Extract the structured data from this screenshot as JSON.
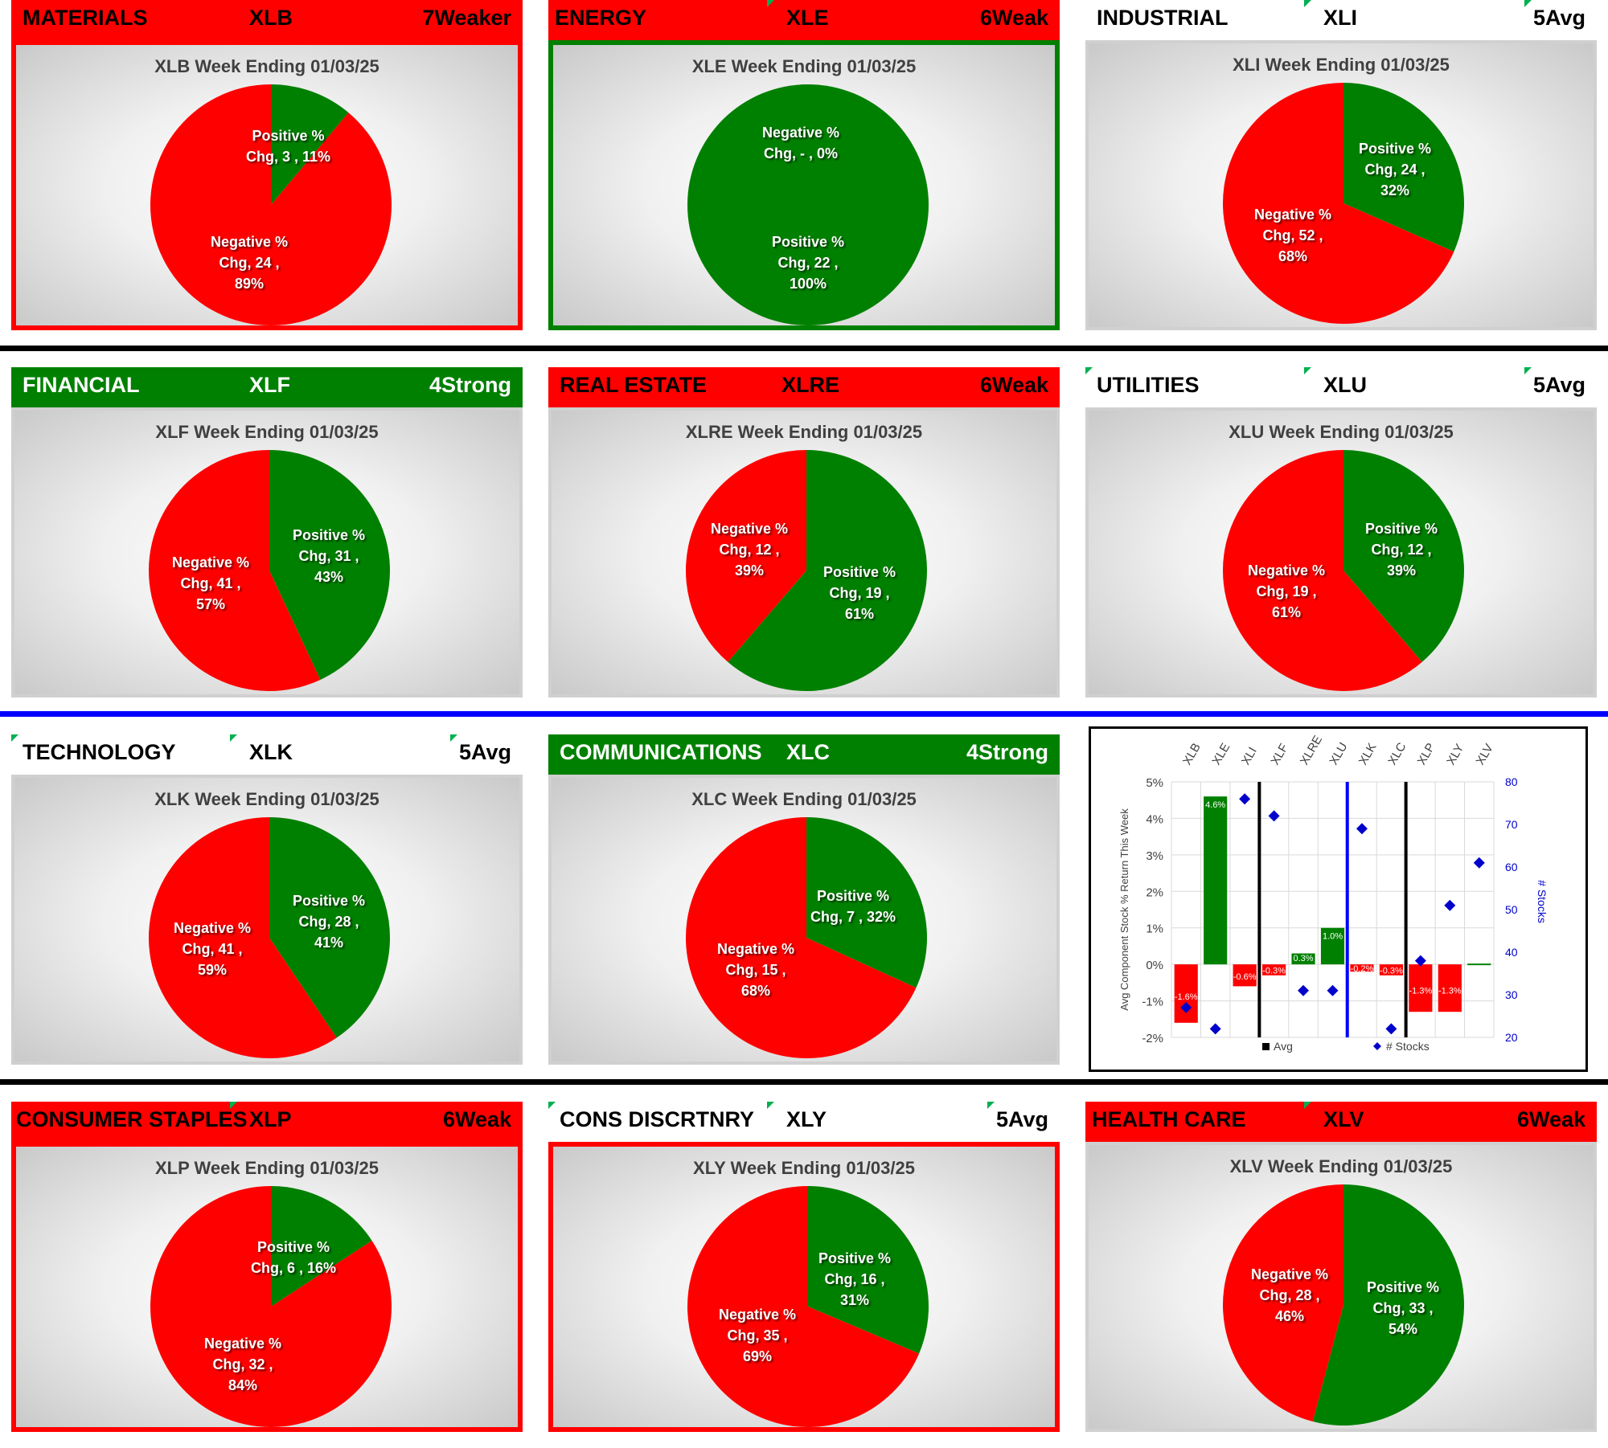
{
  "colors": {
    "positive": "#008000",
    "negative": "#ff0000",
    "avg_line": "#000000",
    "stocks_marker": "#0000cc",
    "blue_separator": "#0000ff"
  },
  "sectors": [
    {
      "id": "xlb",
      "name": "MATERIALS",
      "ticker": "XLB",
      "rating": "7Weaker",
      "title": "XLB Week Ending 01/03/25",
      "pos_label": [
        "Positive %",
        "Chg,  3 , 11%"
      ],
      "neg_label": [
        "Negative %",
        "Chg,  24 ,",
        "89%"
      ],
      "positive_count": 3,
      "negative_count": 24,
      "positive_pct": 11
    },
    {
      "id": "xle",
      "name": "ENERGY",
      "ticker": "XLE",
      "rating": "6Weak",
      "title": "XLE Week Ending 01/03/25",
      "pos_label": [
        "Positive %",
        "Chg,  22 ,",
        "100%"
      ],
      "neg_label": [
        "Negative %",
        "Chg,  -   , 0%"
      ],
      "positive_count": 22,
      "negative_count": 0,
      "positive_pct": 100
    },
    {
      "id": "xli",
      "name": "INDUSTRIAL",
      "ticker": "XLI",
      "rating": "5Avg",
      "title": "XLI Week Ending 01/03/25",
      "pos_label": [
        "Positive %",
        "Chg,  24 ,",
        "32%"
      ],
      "neg_label": [
        "Negative %",
        "Chg,  52 ,",
        "68%"
      ],
      "positive_count": 24,
      "negative_count": 52,
      "positive_pct": 32
    },
    {
      "id": "xlf",
      "name": "FINANCIAL",
      "ticker": "XLF",
      "rating": "4Strong",
      "title": "XLF Week Ending 01/03/25",
      "pos_label": [
        "Positive %",
        "Chg,  31 ,",
        "43%"
      ],
      "neg_label": [
        "Negative %",
        "Chg,  41 ,",
        "57%"
      ],
      "positive_count": 31,
      "negative_count": 41,
      "positive_pct": 43
    },
    {
      "id": "xlre",
      "name": "REAL ESTATE",
      "ticker": "XLRE",
      "rating": "6Weak",
      "title": "XLRE Week Ending 01/03/25",
      "pos_label": [
        "Positive %",
        "Chg,  19 ,",
        "61%"
      ],
      "neg_label": [
        "Negative %",
        "Chg,  12 ,",
        "39%"
      ],
      "positive_count": 19,
      "negative_count": 12,
      "positive_pct": 61
    },
    {
      "id": "xlu",
      "name": "UTILITIES",
      "ticker": "XLU",
      "rating": "5Avg",
      "title": "XLU Week Ending 01/03/25",
      "pos_label": [
        "Positive %",
        "Chg,  12 ,",
        "39%"
      ],
      "neg_label": [
        "Negative %",
        "Chg,  19 ,",
        "61%"
      ],
      "positive_count": 12,
      "negative_count": 19,
      "positive_pct": 39
    },
    {
      "id": "xlk",
      "name": "TECHNOLOGY",
      "ticker": "XLK",
      "rating": "5Avg",
      "title": "XLK Week Ending 01/03/25",
      "pos_label": [
        "Positive %",
        "Chg,  28 ,",
        "41%"
      ],
      "neg_label": [
        "Negative %",
        "Chg,  41 ,",
        "59%"
      ],
      "positive_count": 28,
      "negative_count": 41,
      "positive_pct": 41
    },
    {
      "id": "xlc",
      "name": "COMMUNICATIONS",
      "ticker": "XLC",
      "rating": "4Strong",
      "title": "XLC Week Ending 01/03/25",
      "pos_label": [
        "Positive %",
        "Chg,  7 , 32%"
      ],
      "neg_label": [
        "Negative %",
        "Chg,  15 ,",
        "68%"
      ],
      "positive_count": 7,
      "negative_count": 15,
      "positive_pct": 32
    },
    {
      "id": "xlp",
      "name": "CONSUMER STAPLES",
      "ticker": "XLP",
      "rating": "6Weak",
      "title": "XLP Week Ending 01/03/25",
      "pos_label": [
        "Positive %",
        "Chg,  6 , 16%"
      ],
      "neg_label": [
        "Negative %",
        "Chg,  32 ,",
        "84%"
      ],
      "positive_count": 6,
      "negative_count": 32,
      "positive_pct": 16
    },
    {
      "id": "xly",
      "name": "CONS DISCRTNRY",
      "ticker": "XLY",
      "rating": "5Avg",
      "title": "XLY Week Ending 01/03/25",
      "pos_label": [
        "Positive %",
        "Chg,  16 ,",
        "31%"
      ],
      "neg_label": [
        "Negative %",
        "Chg,  35 ,",
        "69%"
      ],
      "positive_count": 16,
      "negative_count": 35,
      "positive_pct": 31
    },
    {
      "id": "xlv",
      "name": "HEALTH CARE",
      "ticker": "XLV",
      "rating": "6Weak",
      "title": "XLV Week Ending 01/03/25",
      "pos_label": [
        "Positive %",
        "Chg,  33 ,",
        "54%"
      ],
      "neg_label": [
        "Negative %",
        "Chg,  28 ,",
        "46%"
      ],
      "positive_count": 33,
      "negative_count": 28,
      "positive_pct": 54
    }
  ],
  "chart_data": [
    {
      "type": "pie",
      "title": "XLB Week Ending 01/03/25",
      "categories": [
        "Positive % Chg",
        "Negative % Chg"
      ],
      "values": [
        3,
        24
      ],
      "percent": [
        11,
        89
      ]
    },
    {
      "type": "pie",
      "title": "XLE Week Ending 01/03/25",
      "categories": [
        "Positive % Chg",
        "Negative % Chg"
      ],
      "values": [
        22,
        0
      ],
      "percent": [
        100,
        0
      ]
    },
    {
      "type": "pie",
      "title": "XLI Week Ending 01/03/25",
      "categories": [
        "Positive % Chg",
        "Negative % Chg"
      ],
      "values": [
        24,
        52
      ],
      "percent": [
        32,
        68
      ]
    },
    {
      "type": "pie",
      "title": "XLF Week Ending 01/03/25",
      "categories": [
        "Positive % Chg",
        "Negative % Chg"
      ],
      "values": [
        31,
        41
      ],
      "percent": [
        43,
        57
      ]
    },
    {
      "type": "pie",
      "title": "XLRE Week Ending 01/03/25",
      "categories": [
        "Positive % Chg",
        "Negative % Chg"
      ],
      "values": [
        19,
        12
      ],
      "percent": [
        61,
        39
      ]
    },
    {
      "type": "pie",
      "title": "XLU Week Ending 01/03/25",
      "categories": [
        "Positive % Chg",
        "Negative % Chg"
      ],
      "values": [
        12,
        19
      ],
      "percent": [
        39,
        61
      ]
    },
    {
      "type": "pie",
      "title": "XLK Week Ending 01/03/25",
      "categories": [
        "Positive % Chg",
        "Negative % Chg"
      ],
      "values": [
        28,
        41
      ],
      "percent": [
        41,
        59
      ]
    },
    {
      "type": "pie",
      "title": "XLC Week Ending 01/03/25",
      "categories": [
        "Positive % Chg",
        "Negative % Chg"
      ],
      "values": [
        7,
        15
      ],
      "percent": [
        32,
        68
      ]
    },
    {
      "type": "pie",
      "title": "XLP Week Ending 01/03/25",
      "categories": [
        "Positive % Chg",
        "Negative % Chg"
      ],
      "values": [
        6,
        32
      ],
      "percent": [
        16,
        84
      ]
    },
    {
      "type": "pie",
      "title": "XLY Week Ending 01/03/25",
      "categories": [
        "Positive % Chg",
        "Negative % Chg"
      ],
      "values": [
        16,
        35
      ],
      "percent": [
        31,
        69
      ]
    },
    {
      "type": "pie",
      "title": "XLV Week Ending 01/03/25",
      "categories": [
        "Positive % Chg",
        "Negative % Chg"
      ],
      "values": [
        33,
        28
      ],
      "percent": [
        54,
        46
      ]
    },
    {
      "type": "bar",
      "title": "",
      "categories": [
        "XLB",
        "XLE",
        "XLI",
        "XLF",
        "XLRE",
        "XLU",
        "XLK",
        "XLC",
        "XLP",
        "XLY",
        "XLV"
      ],
      "series": [
        {
          "name": "Avg",
          "axis": "left",
          "values": [
            -1.6,
            4.6,
            -0.6,
            -0.3,
            0.3,
            1.0,
            -0.2,
            -0.3,
            -1.3,
            -1.3,
            0.0
          ],
          "data_labels": [
            "-1.6%",
            "4.6%",
            "-0.6%",
            "-0.3%",
            "0.3%",
            "1.0%",
            "-0.2%",
            "-0.3%",
            "-1.3%",
            "-1.3%",
            ""
          ]
        },
        {
          "name": "# Stocks",
          "type": "scatter",
          "axis": "right",
          "values": [
            27,
            22,
            76,
            72,
            31,
            31,
            69,
            22,
            38,
            51,
            61
          ]
        }
      ],
      "ylabel": "Avg Component Stock % Return This Week",
      "y2label": "# Stocks",
      "ylim": [
        -2,
        5
      ],
      "y2lim": [
        20,
        80
      ],
      "yticks": [
        "5%",
        "4%",
        "3%",
        "2%",
        "1%",
        "0%",
        "-1%",
        "-2%"
      ],
      "y2ticks": [
        "80",
        "70",
        "60",
        "50",
        "40",
        "30",
        "20"
      ],
      "legend": [
        "Avg",
        "# Stocks"
      ],
      "legend_position": "bottom"
    }
  ]
}
